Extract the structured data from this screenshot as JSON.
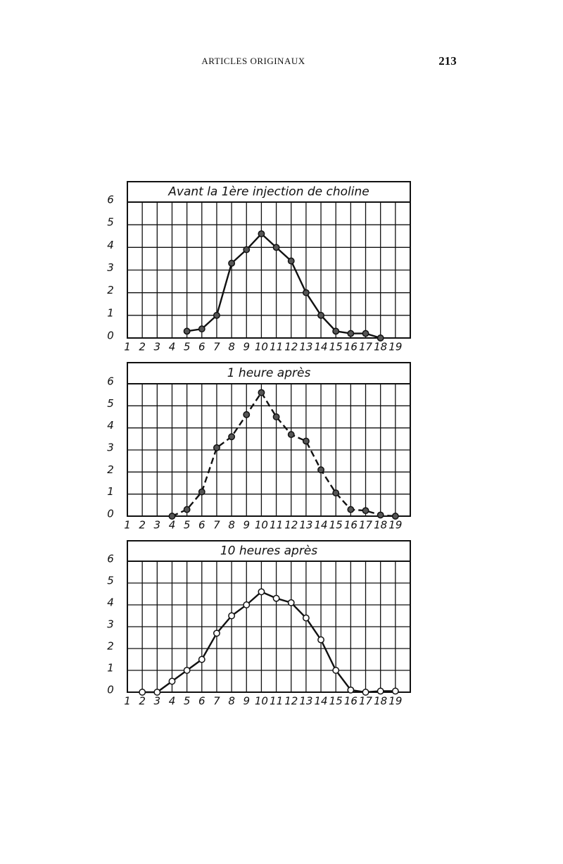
{
  "header": {
    "title": "ARTICLES ORIGINAUX",
    "page": "213"
  },
  "chart_data": [
    {
      "type": "line",
      "title": "Avant la 1ère injection de choline",
      "line_style": "solid",
      "marker": "filled",
      "x": [
        5,
        6,
        7,
        8,
        9,
        10,
        11,
        12,
        13,
        14,
        15,
        16,
        17,
        18
      ],
      "values": [
        0.3,
        0.4,
        1,
        3.3,
        3.9,
        4.6,
        4,
        3.4,
        2,
        1,
        0.3,
        0.2,
        0.2,
        0
      ],
      "xlim": [
        1,
        20
      ],
      "xticks": [
        1,
        2,
        3,
        4,
        5,
        6,
        7,
        8,
        9,
        10,
        11,
        12,
        13,
        14,
        15,
        16,
        17,
        18,
        19
      ],
      "ylim": [
        0,
        6
      ],
      "yticks": [
        0,
        1,
        2,
        3,
        4,
        5,
        6
      ],
      "grid": true
    },
    {
      "type": "line",
      "title": "1 heure après",
      "line_style": "dashed",
      "marker": "filled",
      "x": [
        4,
        5,
        6,
        7,
        8,
        9,
        10,
        11,
        12,
        13,
        14,
        15,
        16,
        17,
        18,
        19
      ],
      "values": [
        0,
        0.3,
        1.1,
        3.1,
        3.6,
        4.6,
        5.6,
        4.5,
        3.7,
        3.4,
        2.1,
        1.05,
        0.3,
        0.25,
        0.05,
        0
      ],
      "xlim": [
        1,
        20
      ],
      "xticks": [
        1,
        2,
        3,
        4,
        5,
        6,
        7,
        8,
        9,
        10,
        11,
        12,
        13,
        14,
        15,
        16,
        17,
        18,
        19
      ],
      "ylim": [
        0,
        6
      ],
      "yticks": [
        0,
        1,
        2,
        3,
        4,
        5,
        6
      ],
      "grid": true
    },
    {
      "type": "line",
      "title": "10 heures après",
      "line_style": "solid",
      "marker": "open",
      "x": [
        2,
        3,
        4,
        5,
        6,
        7,
        8,
        9,
        10,
        11,
        12,
        13,
        14,
        15,
        16,
        17,
        18,
        19
      ],
      "values": [
        0,
        0,
        0.5,
        1,
        1.5,
        2.7,
        3.5,
        4,
        4.6,
        4.3,
        4.1,
        3.4,
        2.4,
        1,
        0.1,
        0,
        0.05,
        0.05
      ],
      "xlim": [
        1,
        20
      ],
      "xticks": [
        1,
        2,
        3,
        4,
        5,
        6,
        7,
        8,
        9,
        10,
        11,
        12,
        13,
        14,
        15,
        16,
        17,
        18,
        19
      ],
      "ylim": [
        0,
        6
      ],
      "yticks": [
        0,
        1,
        2,
        3,
        4,
        5,
        6
      ],
      "grid": true
    }
  ]
}
